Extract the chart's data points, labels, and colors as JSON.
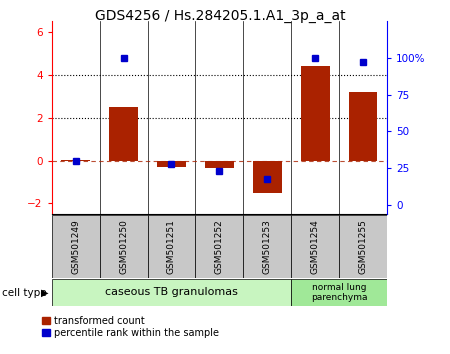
{
  "title": "GDS4256 / Hs.284205.1.A1_3p_a_at",
  "samples": [
    "GSM501249",
    "GSM501250",
    "GSM501251",
    "GSM501252",
    "GSM501253",
    "GSM501254",
    "GSM501255"
  ],
  "transformed_count": [
    0.02,
    2.5,
    -0.3,
    -0.35,
    -1.5,
    4.4,
    3.2
  ],
  "percentile_rank": [
    30,
    100,
    28,
    23,
    18,
    100,
    97
  ],
  "bar_color": "#aa2200",
  "square_color": "#0000cc",
  "ylim_left": [
    -2.5,
    6.5
  ],
  "ylim_right": [
    -6.25,
    125
  ],
  "yticks_left": [
    -2,
    0,
    2,
    4,
    6
  ],
  "yticks_right": [
    0,
    25,
    50,
    75,
    100
  ],
  "ytick_labels_right": [
    "0",
    "25",
    "50",
    "75",
    "100%"
  ],
  "dotted_line_y": [
    2,
    4
  ],
  "dashed_line_y": 0,
  "group1_label": "caseous TB granulomas",
  "group2_label": "normal lung\nparenchyma",
  "cell_type_label": "cell type",
  "legend_red": "transformed count",
  "legend_blue": "percentile rank within the sample",
  "group1_color": "#c8f5c0",
  "group2_color": "#a0e898",
  "tick_bg_color": "#c8c8c8",
  "bar_width": 0.6,
  "square_size": 25,
  "n_group1": 5,
  "n_group2": 2
}
